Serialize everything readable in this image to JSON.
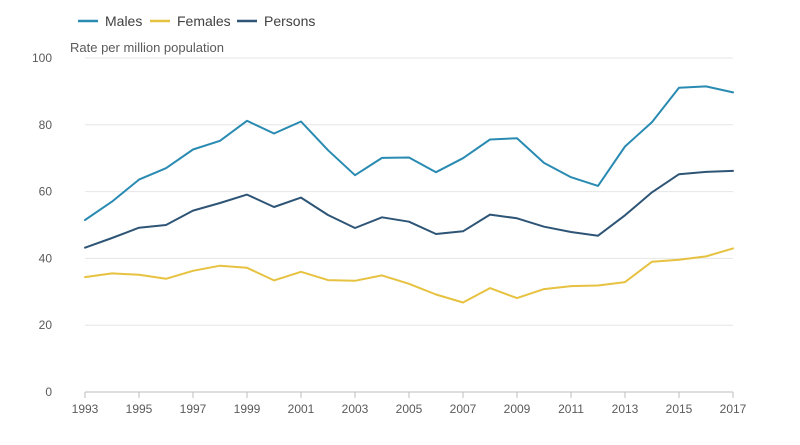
{
  "chart_data": {
    "type": "line",
    "title": "",
    "xlabel": "",
    "ylabel": "Rate per million population",
    "xlim": [
      1993,
      2017
    ],
    "ylim": [
      0,
      100
    ],
    "yticks": [
      0,
      20,
      40,
      60,
      80,
      100
    ],
    "xtick_labels": [
      1993,
      1995,
      1997,
      1999,
      2001,
      2003,
      2005,
      2007,
      2009,
      2011,
      2013,
      2015,
      2017
    ],
    "grid": true,
    "legend_position": "top-left",
    "x": [
      1993,
      1994,
      1995,
      1996,
      1997,
      1998,
      1999,
      2000,
      2001,
      2002,
      2003,
      2004,
      2005,
      2006,
      2007,
      2008,
      2009,
      2010,
      2011,
      2012,
      2013,
      2014,
      2015,
      2016,
      2017
    ],
    "series": [
      {
        "name": "Males",
        "color": "#2a8bb2",
        "values": [
          51.5,
          57,
          63.6,
          67,
          72.6,
          75.2,
          81.2,
          77.4,
          81,
          72.4,
          64.9,
          70.1,
          70.2,
          65.8,
          70,
          75.6,
          76,
          68.6,
          64.3,
          61.7,
          73.5,
          80.8,
          91.1,
          91.5,
          89.7
        ]
      },
      {
        "name": "Females",
        "color": "#e6c240",
        "values": [
          34.4,
          35.5,
          35.1,
          33.9,
          36.3,
          37.8,
          37.2,
          33.4,
          36,
          33.5,
          33.3,
          34.9,
          32.4,
          29.2,
          26.8,
          31.1,
          28.1,
          30.8,
          31.7,
          31.9,
          32.9,
          39,
          39.6,
          40.6,
          43
        ]
      },
      {
        "name": "Persons",
        "color": "#2e5576",
        "values": [
          43.2,
          46.1,
          49.2,
          50,
          54.3,
          56.6,
          59.1,
          55.4,
          58.2,
          53,
          49.1,
          52.3,
          51,
          47.3,
          48.1,
          53.1,
          52,
          49.5,
          47.9,
          46.8,
          52.9,
          59.8,
          65.2,
          65.9,
          66.2
        ]
      }
    ]
  }
}
